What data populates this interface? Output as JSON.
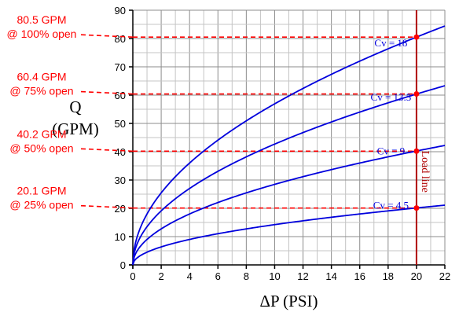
{
  "chart_data": {
    "type": "line",
    "title": "",
    "xlabel": "ΔP (PSI)",
    "ylabel_line1": "Q",
    "ylabel_line2": "(GPM)",
    "xlim": [
      0,
      22
    ],
    "ylim": [
      0,
      90
    ],
    "x_ticks": [
      "0",
      "2",
      "4",
      "6",
      "8",
      "10",
      "12",
      "14",
      "16",
      "18",
      "20",
      "22"
    ],
    "y_ticks": [
      "0",
      "10",
      "20",
      "30",
      "40",
      "50",
      "60",
      "70",
      "80",
      "90"
    ],
    "grid": true,
    "curve_color": "#0000dd",
    "annotation_color": "#ff0000",
    "loadline_color": "#b00000",
    "series": [
      {
        "name": "Cv = 18",
        "cv": 18.0
      },
      {
        "name": "Cv = 13.5",
        "cv": 13.5
      },
      {
        "name": "Cv = 9",
        "cv": 9.0
      },
      {
        "name": "Cv = 4.5",
        "cv": 4.5
      }
    ],
    "load_line": {
      "x": 20,
      "label": "Load line"
    },
    "operating_points": [
      {
        "y": 80.5,
        "line1": "80.5 GPM",
        "line2": "@ 100% open"
      },
      {
        "y": 60.4,
        "line1": "60.4 GPM",
        "line2": "@ 75% open"
      },
      {
        "y": 40.2,
        "line1": "40.2 GPM",
        "line2": "@ 50% open"
      },
      {
        "y": 20.1,
        "line1": "20.1 GPM",
        "line2": "@ 25% open"
      }
    ]
  }
}
